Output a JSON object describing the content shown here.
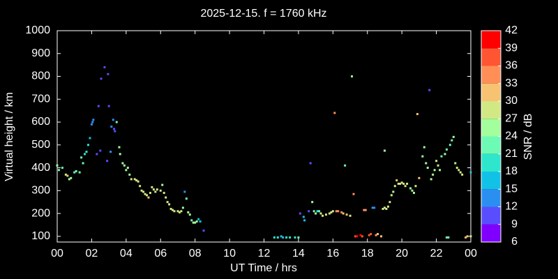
{
  "chart_data": {
    "type": "scatter",
    "title": "2025-12-15. f = 1760 kHz",
    "xlabel": "UT Time / hrs",
    "ylabel": "Virtual height / km",
    "xlim": [
      0,
      24
    ],
    "xticks": [
      {
        "value": 0,
        "label": "00"
      },
      {
        "value": 2,
        "label": "02"
      },
      {
        "value": 4,
        "label": "04"
      },
      {
        "value": 6,
        "label": "06"
      },
      {
        "value": 8,
        "label": "08"
      },
      10,
      12,
      14,
      16,
      18,
      20,
      22,
      {
        "value": 24,
        "label": "00"
      }
    ],
    "ylim": [
      75,
      1000
    ],
    "yticks": [
      100,
      200,
      300,
      400,
      500,
      600,
      700,
      800,
      900,
      1000
    ],
    "x": [
      0.0,
      0.1,
      0.3,
      0.5,
      0.6,
      0.7,
      0.8,
      1.0,
      1.1,
      1.3,
      1.4,
      1.5,
      1.6,
      1.7,
      1.8,
      1.9,
      2.0,
      2.05,
      2.1,
      2.3,
      2.4,
      2.5,
      2.55,
      2.75,
      2.9,
      2.95,
      3.0,
      3.1,
      3.15,
      3.25,
      3.3,
      3.35,
      3.45,
      3.6,
      3.65,
      3.8,
      3.9,
      4.0,
      4.1,
      4.2,
      4.3,
      4.5,
      4.6,
      4.7,
      4.8,
      4.9,
      5.0,
      5.1,
      5.2,
      5.3,
      5.4,
      5.5,
      5.6,
      5.7,
      5.8,
      6.0,
      6.1,
      6.2,
      6.3,
      6.4,
      6.5,
      6.6,
      6.7,
      6.8,
      7.0,
      7.1,
      7.2,
      7.3,
      7.4,
      7.5,
      7.6,
      7.7,
      7.8,
      7.9,
      8.0,
      8.1,
      8.2,
      8.3,
      8.5,
      12.6,
      12.8,
      13.0,
      13.1,
      13.3,
      13.5,
      13.8,
      14.0,
      14.1,
      14.3,
      14.35,
      14.6,
      14.7,
      14.8,
      14.9,
      15.0,
      15.1,
      15.2,
      15.3,
      15.4,
      15.6,
      15.8,
      15.9,
      16.0,
      16.1,
      16.2,
      16.3,
      16.5,
      16.6,
      16.7,
      16.8,
      17.0,
      17.1,
      17.2,
      17.3,
      17.4,
      17.6,
      17.7,
      17.8,
      17.9,
      18.1,
      18.2,
      18.3,
      18.4,
      18.5,
      18.6,
      18.8,
      18.9,
      19.0,
      19.0,
      19.1,
      19.2,
      19.3,
      19.4,
      19.5,
      19.6,
      19.7,
      19.8,
      19.9,
      20.0,
      20.1,
      20.2,
      20.3,
      20.5,
      20.6,
      20.7,
      20.8,
      20.9,
      21.0,
      21.2,
      21.3,
      21.4,
      21.5,
      21.6,
      21.7,
      21.8,
      21.9,
      22.0,
      22.1,
      22.2,
      22.3,
      22.5,
      22.6,
      22.6,
      22.7,
      22.8,
      22.9,
      23.0,
      23.1,
      23.2,
      23.3,
      23.4,
      23.5,
      23.7,
      23.8,
      24.0,
      24.0
    ],
    "values": [
      410,
      390,
      400,
      370,
      365,
      350,
      355,
      380,
      385,
      380,
      445,
      420,
      460,
      470,
      500,
      530,
      590,
      600,
      610,
      460,
      670,
      475,
      790,
      840,
      430,
      810,
      670,
      470,
      580,
      610,
      570,
      560,
      600,
      490,
      460,
      420,
      410,
      390,
      400,
      370,
      350,
      350,
      345,
      340,
      320,
      300,
      295,
      285,
      280,
      270,
      290,
      315,
      305,
      295,
      305,
      300,
      325,
      290,
      270,
      250,
      240,
      220,
      215,
      210,
      210,
      205,
      210,
      225,
      295,
      265,
      205,
      195,
      170,
      160,
      160,
      165,
      175,
      165,
      125,
      95,
      95,
      100,
      95,
      95,
      95,
      95,
      95,
      200,
      185,
      170,
      210,
      420,
      250,
      210,
      200,
      210,
      210,
      200,
      190,
      195,
      200,
      205,
      210,
      640,
      210,
      210,
      205,
      200,
      410,
      195,
      190,
      800,
      285,
      100,
      100,
      105,
      100,
      215,
      215,
      105,
      110,
      225,
      225,
      105,
      110,
      100,
      220,
      225,
      475,
      220,
      230,
      250,
      280,
      295,
      320,
      345,
      330,
      330,
      335,
      330,
      320,
      330,
      310,
      300,
      290,
      320,
      635,
      355,
      450,
      490,
      420,
      400,
      740,
      350,
      370,
      390,
      430,
      410,
      390,
      450,
      460,
      480,
      95,
      95,
      500,
      520,
      535,
      420,
      400,
      390,
      380,
      370,
      95,
      100,
      100,
      380
    ],
    "snr": [
      25,
      24,
      24,
      30,
      33,
      26,
      26,
      24,
      24,
      24,
      24,
      24,
      21,
      21,
      21,
      18,
      15,
      15,
      15,
      12,
      12,
      12,
      12,
      12,
      12,
      12,
      12,
      15,
      15,
      15,
      12,
      12,
      24,
      26,
      26,
      26,
      26,
      26,
      26,
      26,
      30,
      30,
      30,
      30,
      30,
      30,
      30,
      30,
      30,
      33,
      30,
      30,
      30,
      30,
      30,
      30,
      27,
      30,
      30,
      30,
      30,
      30,
      30,
      30,
      30,
      30,
      30,
      27,
      15,
      24,
      26,
      26,
      24,
      26,
      26,
      26,
      18,
      18,
      12,
      21,
      21,
      18,
      18,
      21,
      21,
      21,
      24,
      12,
      18,
      18,
      12,
      12,
      27,
      24,
      26,
      21,
      24,
      30,
      30,
      30,
      30,
      30,
      30,
      36,
      36,
      36,
      36,
      33,
      24,
      33,
      30,
      25,
      36,
      39,
      42,
      42,
      39,
      36,
      36,
      39,
      39,
      15,
      15,
      36,
      33,
      33,
      30,
      30,
      26,
      30,
      30,
      30,
      30,
      27,
      30,
      33,
      30,
      30,
      30,
      30,
      30,
      30,
      27,
      27,
      27,
      30,
      33,
      33,
      27,
      27,
      27,
      27,
      12,
      27,
      27,
      27,
      30,
      30,
      27,
      24,
      27,
      24,
      24,
      24,
      24,
      24,
      27,
      27,
      30,
      30,
      30,
      30,
      33,
      33,
      30,
      18
    ],
    "colorbar": {
      "label": "SNR / dB",
      "lim": [
        6,
        42
      ],
      "ticks": [
        6,
        9,
        12,
        15,
        18,
        21,
        24,
        27,
        30,
        33,
        36,
        39,
        42
      ],
      "colors": [
        "#7f00ff",
        "#5a4dff",
        "#2b8ff2",
        "#12c2e6",
        "#2ee6cc",
        "#6dfab4",
        "#a3ff9c",
        "#d2e884",
        "#f7c272",
        "#ff8f57",
        "#ff5533",
        "#ff0000"
      ]
    }
  }
}
